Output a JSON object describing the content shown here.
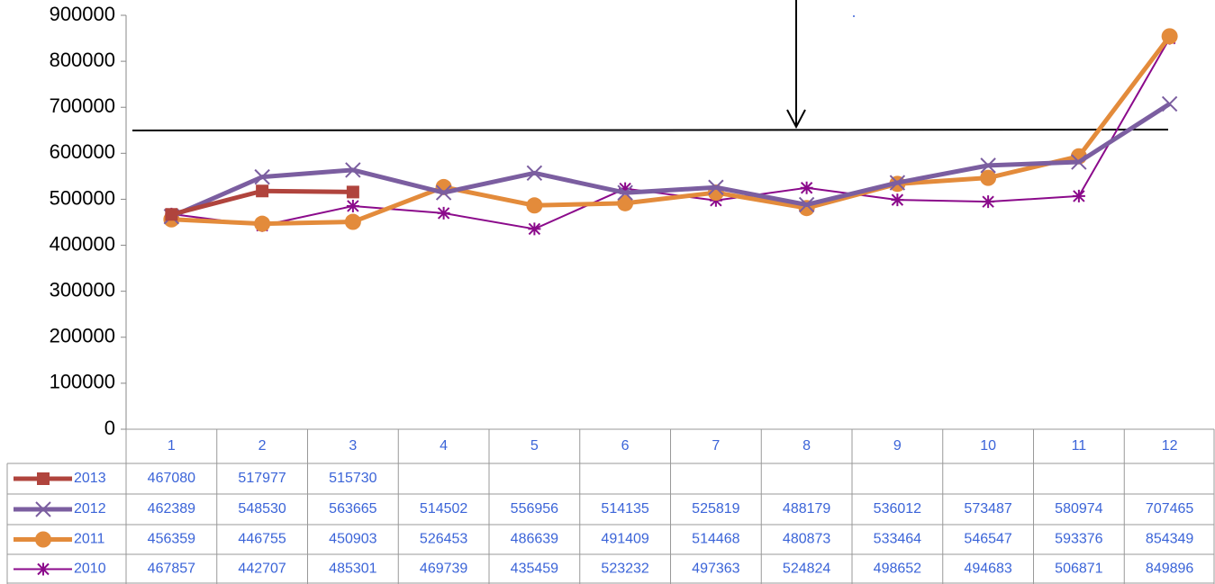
{
  "chart_data": {
    "type": "line",
    "categories": [
      1,
      2,
      3,
      4,
      5,
      6,
      7,
      8,
      9,
      10,
      11,
      12
    ],
    "ylim": [
      0,
      900000
    ],
    "yticks": [
      0,
      100000,
      200000,
      300000,
      400000,
      500000,
      600000,
      700000,
      800000,
      900000
    ],
    "series": [
      {
        "name": "2013",
        "color": "#b0443d",
        "marker": "square",
        "width": 5,
        "values": [
          467080,
          517977,
          515730,
          null,
          null,
          null,
          null,
          null,
          null,
          null,
          null,
          null
        ]
      },
      {
        "name": "2012",
        "color": "#7b5ea0",
        "marker": "x",
        "width": 5,
        "values": [
          462389,
          548530,
          563665,
          514502,
          556956,
          514135,
          525819,
          488179,
          536012,
          573487,
          580974,
          707465
        ]
      },
      {
        "name": "2011",
        "color": "#e38b3b",
        "marker": "circle",
        "width": 5,
        "values": [
          456359,
          446755,
          450903,
          526453,
          486639,
          491409,
          514468,
          480873,
          533464,
          546547,
          593376,
          854349
        ]
      },
      {
        "name": "2010",
        "color": "#8b0a8b",
        "marker": "star",
        "width": 2,
        "values": [
          467857,
          442707,
          485301,
          469739,
          435459,
          523232,
          497363,
          524824,
          498652,
          494683,
          506871,
          849896
        ]
      }
    ]
  }
}
